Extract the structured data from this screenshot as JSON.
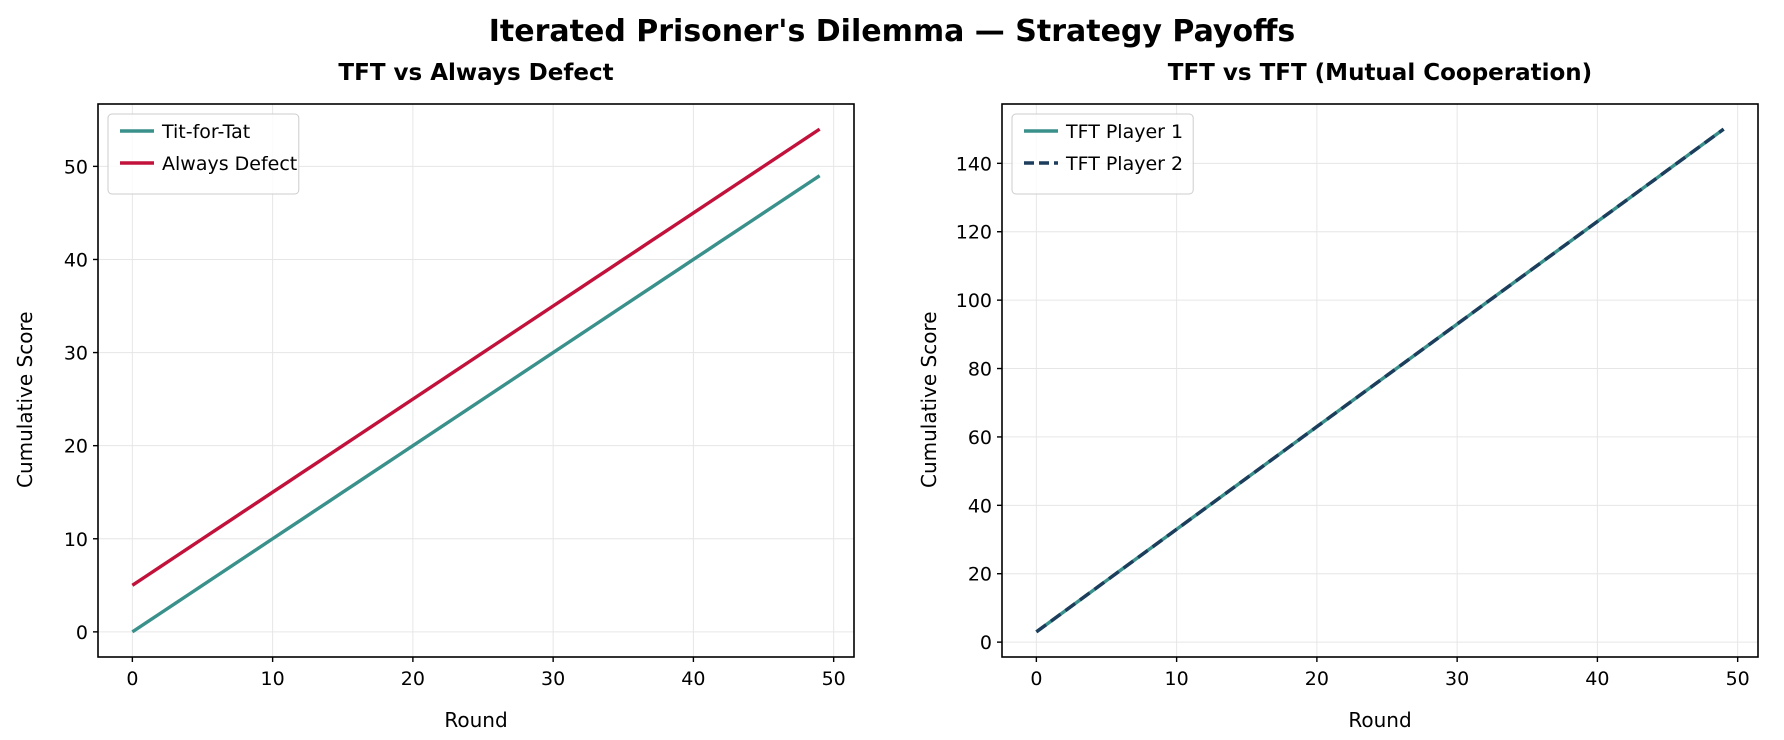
{
  "figure": {
    "title": "Iterated Prisoner's Dilemma — Strategy Payoffs",
    "background": "#ffffff",
    "grid_color": "#e6e6e6",
    "spine_color": "#000000",
    "legend_border_color": "#cccccc"
  },
  "chart_data": [
    {
      "type": "line",
      "title": "TFT vs Always Defect",
      "xlabel": "Round",
      "ylabel": "Cumulative Score",
      "grid": true,
      "legend_position": "upper left",
      "xlim": [
        -2.45,
        51.45
      ],
      "ylim": [
        -2.7,
        56.7
      ],
      "xticks": [
        0,
        10,
        20,
        30,
        40,
        50
      ],
      "yticks": [
        0,
        10,
        20,
        30,
        40,
        50
      ],
      "x": [
        0,
        1,
        2,
        3,
        4,
        5,
        6,
        7,
        8,
        9,
        10,
        11,
        12,
        13,
        14,
        15,
        16,
        17,
        18,
        19,
        20,
        21,
        22,
        23,
        24,
        25,
        26,
        27,
        28,
        29,
        30,
        31,
        32,
        33,
        34,
        35,
        36,
        37,
        38,
        39,
        40,
        41,
        42,
        43,
        44,
        45,
        46,
        47,
        48,
        49
      ],
      "series": [
        {
          "name": "Tit-for-Tat",
          "color": "#3a918c",
          "style": "solid",
          "values": [
            0,
            1,
            2,
            3,
            4,
            5,
            6,
            7,
            8,
            9,
            10,
            11,
            12,
            13,
            14,
            15,
            16,
            17,
            18,
            19,
            20,
            21,
            22,
            23,
            24,
            25,
            26,
            27,
            28,
            29,
            30,
            31,
            32,
            33,
            34,
            35,
            36,
            37,
            38,
            39,
            40,
            41,
            42,
            43,
            44,
            45,
            46,
            47,
            48,
            49
          ]
        },
        {
          "name": "Always Defect",
          "color": "#c2123b",
          "style": "solid",
          "values": [
            5,
            6,
            7,
            8,
            9,
            10,
            11,
            12,
            13,
            14,
            15,
            16,
            17,
            18,
            19,
            20,
            21,
            22,
            23,
            24,
            25,
            26,
            27,
            28,
            29,
            30,
            31,
            32,
            33,
            34,
            35,
            36,
            37,
            38,
            39,
            40,
            41,
            42,
            43,
            44,
            45,
            46,
            47,
            48,
            49,
            50,
            51,
            52,
            53,
            54
          ]
        }
      ]
    },
    {
      "type": "line",
      "title": "TFT vs TFT (Mutual Cooperation)",
      "xlabel": "Round",
      "ylabel": "Cumulative Score",
      "grid": true,
      "legend_position": "upper left",
      "xlim": [
        -2.45,
        51.45
      ],
      "ylim": [
        -4.35,
        157.35
      ],
      "xticks": [
        0,
        10,
        20,
        30,
        40,
        50
      ],
      "yticks": [
        0,
        20,
        40,
        60,
        80,
        100,
        120,
        140
      ],
      "x": [
        0,
        1,
        2,
        3,
        4,
        5,
        6,
        7,
        8,
        9,
        10,
        11,
        12,
        13,
        14,
        15,
        16,
        17,
        18,
        19,
        20,
        21,
        22,
        23,
        24,
        25,
        26,
        27,
        28,
        29,
        30,
        31,
        32,
        33,
        34,
        35,
        36,
        37,
        38,
        39,
        40,
        41,
        42,
        43,
        44,
        45,
        46,
        47,
        48,
        49
      ],
      "series": [
        {
          "name": "TFT Player 1",
          "color": "#3a918c",
          "style": "solid",
          "values": [
            3,
            6,
            9,
            12,
            15,
            18,
            21,
            24,
            27,
            30,
            33,
            36,
            39,
            42,
            45,
            48,
            51,
            54,
            57,
            60,
            63,
            66,
            69,
            72,
            75,
            78,
            81,
            84,
            87,
            90,
            93,
            96,
            99,
            102,
            105,
            108,
            111,
            114,
            117,
            120,
            123,
            126,
            129,
            132,
            135,
            138,
            141,
            144,
            147,
            150
          ]
        },
        {
          "name": "TFT Player 2",
          "color": "#1c3d5c",
          "style": "dashed",
          "values": [
            3,
            6,
            9,
            12,
            15,
            18,
            21,
            24,
            27,
            30,
            33,
            36,
            39,
            42,
            45,
            48,
            51,
            54,
            57,
            60,
            63,
            66,
            69,
            72,
            75,
            78,
            81,
            84,
            87,
            90,
            93,
            96,
            99,
            102,
            105,
            108,
            111,
            114,
            117,
            120,
            123,
            126,
            129,
            132,
            135,
            138,
            141,
            144,
            147,
            150
          ]
        }
      ]
    }
  ]
}
